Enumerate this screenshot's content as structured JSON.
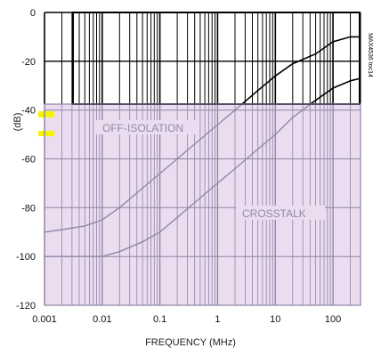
{
  "chart_data": {
    "type": "line",
    "part_number": "MAX4536 toc14",
    "xlabel": "FREQUENCY (MHz)",
    "ylabel": "(dB)",
    "xscale": "log",
    "xlim": [
      0.001,
      300
    ],
    "ylim": [
      -120,
      0
    ],
    "xticks": [
      0.001,
      0.01,
      0.1,
      1,
      10,
      100
    ],
    "xtick_labels": [
      "0.001",
      "0.01",
      "0.1",
      "1",
      "10",
      "100"
    ],
    "yticks": [
      0,
      -20,
      -40,
      -60,
      -80,
      -100,
      -120
    ],
    "ytick_labels": [
      "0",
      "-20",
      "-40",
      "-60",
      "-80",
      "-100",
      "-120"
    ],
    "grid": true,
    "colors": {
      "plot_bg": "#ecdcef",
      "top_band_bg": "#ffffff",
      "grid_light": "#8e84a6",
      "grid_dark": "#000000",
      "series_light": "#8e8aa8",
      "series_dark": "#000000",
      "highlight": "#f4f400"
    },
    "series": [
      {
        "name": "OFF-ISOLATION",
        "x": [
          0.001,
          0.002,
          0.005,
          0.01,
          0.02,
          0.05,
          0.1,
          0.2,
          0.5,
          1,
          2,
          5,
          10,
          20,
          50,
          100,
          200,
          300
        ],
        "y": [
          -90,
          -89,
          -87.5,
          -85,
          -80,
          -72,
          -66,
          -60,
          -52,
          -46,
          -40,
          -32,
          -26,
          -21,
          -17,
          -12,
          -10,
          -10
        ]
      },
      {
        "name": "CROSSTALK",
        "x": [
          0.001,
          0.002,
          0.005,
          0.01,
          0.02,
          0.05,
          0.1,
          0.2,
          0.5,
          1,
          2,
          5,
          10,
          20,
          50,
          100,
          200,
          300
        ],
        "y": [
          -100,
          -100,
          -100,
          -100,
          -98,
          -94,
          -90,
          -84,
          -76,
          -70,
          -64,
          -56,
          -50,
          -43,
          -36,
          -31,
          -28,
          -27
        ]
      }
    ]
  }
}
